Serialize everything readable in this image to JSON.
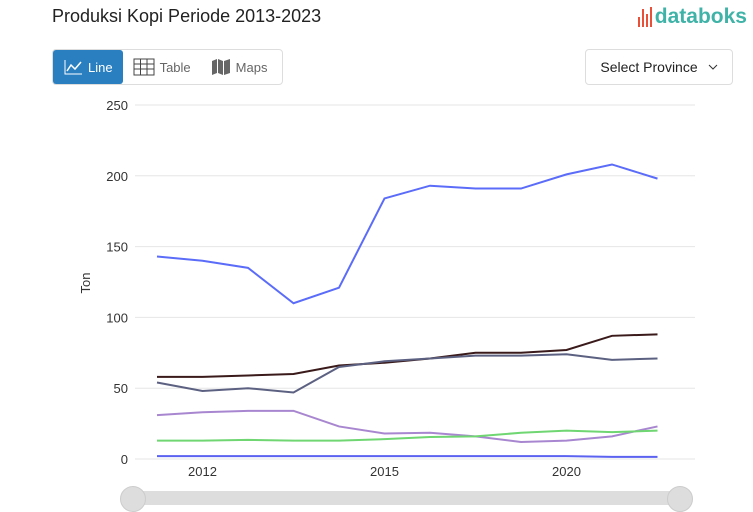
{
  "header": {
    "title": "Produksi Kopi Periode 2013-2023",
    "logo": "databoks"
  },
  "tabs": [
    {
      "label": "Line",
      "icon": "line-chart-icon",
      "active": true
    },
    {
      "label": "Table",
      "icon": "table-icon"
    },
    {
      "label": "Maps",
      "icon": "map-icon"
    }
  ],
  "province_select": {
    "label": "Select Province"
  },
  "colors": {
    "accent": "#2a7fc1",
    "logo": "#3fb3a8"
  },
  "chart_data": {
    "type": "line",
    "title": "",
    "ylabel": "Ton",
    "xlabel": "",
    "ylim": [
      0,
      250
    ],
    "yticks": [
      0,
      50,
      100,
      150,
      200,
      250
    ],
    "point_count": 12,
    "xtick_labels": [
      {
        "label": "2012",
        "index": 1
      },
      {
        "label": "2015",
        "index": 5
      },
      {
        "label": "2020",
        "index": 9
      }
    ],
    "grid": true,
    "series": [
      {
        "color": "#5b6cf9",
        "values": [
          143,
          140,
          135,
          110,
          121,
          184,
          193,
          191,
          191,
          201,
          208,
          198
        ]
      },
      {
        "color": "#3a1a1a",
        "values": [
          58,
          58,
          59,
          60,
          66,
          68,
          71,
          75,
          75,
          77,
          87,
          88
        ]
      },
      {
        "color": "#5c6182",
        "values": [
          54,
          48,
          50,
          47,
          65,
          69,
          71,
          73,
          73,
          74,
          70,
          71
        ]
      },
      {
        "color": "#a887d0",
        "values": [
          31,
          33,
          34,
          34,
          23,
          18,
          18.5,
          16,
          12,
          13,
          16,
          23
        ]
      },
      {
        "color": "#6fd672",
        "values": [
          13,
          13,
          13.5,
          13,
          13,
          14,
          15.5,
          16,
          18.5,
          20,
          19,
          20
        ]
      },
      {
        "color": "#5b62f0",
        "values": [
          2,
          2,
          2,
          2,
          2,
          2,
          2,
          2,
          2,
          2,
          1.5,
          1.5
        ]
      }
    ]
  }
}
